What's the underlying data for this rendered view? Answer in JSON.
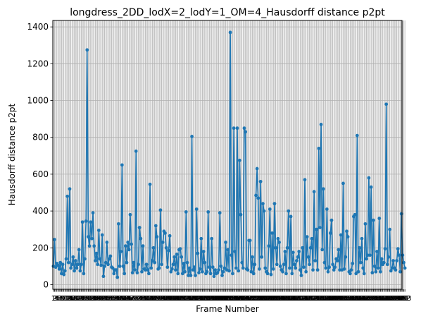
{
  "chart_data": {
    "type": "line",
    "title": "longdress_2DD_lodX=2_lodY=1_OM=4_Hausdorff distance p2pt",
    "xlabel": "Frame Number",
    "ylabel": "Hausdorff distance p2pt",
    "xlim": [
      0.5,
      300.5
    ],
    "ylim": [
      -25,
      1435
    ],
    "y_ticks": [
      0,
      200,
      400,
      600,
      800,
      1000,
      1200,
      1400
    ],
    "grid": true,
    "marker": "circle",
    "color": "#1f77b4",
    "x_start": 1,
    "x_step": 1,
    "series": [
      {
        "values": [
          100,
          245,
          95,
          115,
          105,
          85,
          120,
          60,
          110,
          55,
          75,
          140,
          480,
          120,
          520,
          90,
          110,
          150,
          75,
          130,
          90,
          110,
          190,
          75,
          110,
          340,
          60,
          140,
          345,
          1275,
          260,
          210,
          340,
          250,
          390,
          210,
          130,
          170,
          110,
          295,
          140,
          105,
          270,
          45,
          100,
          120,
          230,
          110,
          140,
          155,
          95,
          90,
          60,
          80,
          80,
          40,
          330,
          100,
          180,
          650,
          100,
          60,
          210,
          120,
          230,
          190,
          380,
          220,
          65,
          120,
          80,
          725,
          65,
          110,
          310,
          250,
          70,
          210,
          85,
          80,
          110,
          80,
          60,
          545,
          90,
          130,
          200,
          120,
          320,
          260,
          85,
          90,
          405,
          110,
          230,
          290,
          280,
          200,
          95,
          185,
          265,
          70,
          85,
          110,
          150,
          80,
          165,
          60,
          190,
          195,
          150,
          60,
          115,
          70,
          395,
          120,
          50,
          90,
          50,
          805,
          80,
          95,
          50,
          410,
          170,
          65,
          85,
          250,
          70,
          180,
          120,
          60,
          70,
          395,
          95,
          60,
          250,
          95,
          45,
          80,
          60,
          65,
          80,
          390,
          100,
          50,
          70,
          90,
          230,
          80,
          190,
          75,
          1370,
          160,
          60,
          850,
          180,
          90,
          850,
          75,
          675,
          380,
          120,
          90,
          850,
          830,
          85,
          80,
          240,
          240,
          70,
          150,
          60,
          110,
          485,
          630,
          470,
          85,
          560,
          150,
          440,
          400,
          90,
          70,
          60,
          210,
          410,
          55,
          280,
          85,
          440,
          200,
          110,
          250,
          230,
          100,
          80,
          70,
          110,
          180,
          60,
          200,
          400,
          90,
          370,
          60,
          175,
          110,
          90,
          130,
          150,
          180,
          80,
          50,
          200,
          95,
          570,
          70,
          260,
          150,
          110,
          200,
          250,
          80,
          505,
          130,
          300,
          80,
          740,
          310,
          870,
          190,
          520,
          120,
          90,
          410,
          70,
          95,
          280,
          350,
          110,
          80,
          95,
          140,
          130,
          190,
          80,
          270,
          80,
          550,
          85,
          150,
          290,
          260,
          70,
          60,
          80,
          115,
          370,
          380,
          60,
          810,
          70,
          200,
          120,
          250,
          90,
          60,
          330,
          140,
          160,
          580,
          160,
          530,
          65,
          350,
          100,
          70,
          180,
          90,
          360,
          70,
          140,
          110,
          120,
          195,
          980,
          110,
          150,
          300,
          75,
          90,
          130,
          90,
          80,
          130,
          195,
          160,
          70,
          385,
          160,
          120,
          90
        ]
      }
    ]
  }
}
